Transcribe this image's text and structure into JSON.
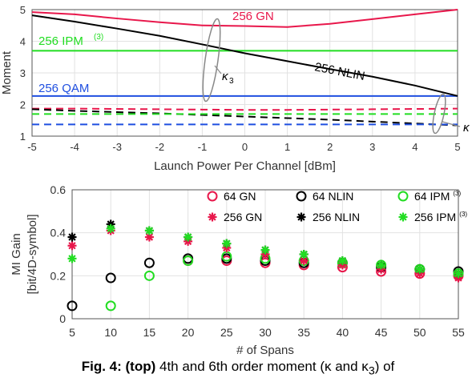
{
  "chart_data": [
    {
      "type": "line",
      "xlabel": "Launch Power Per Channel [dBm]",
      "ylabel": "Moment",
      "xlim": [
        -5,
        5
      ],
      "ylim": [
        1,
        5
      ],
      "xticks": [
        "-5",
        "-4",
        "-3",
        "-2",
        "-1",
        "0",
        "1",
        "2",
        "3",
        "4",
        "5"
      ],
      "yticks": [
        "1",
        "2",
        "3",
        "4",
        "5"
      ],
      "grid": true,
      "x": [
        -5,
        -4,
        -3,
        -2,
        -1,
        0,
        1,
        2,
        3,
        4,
        5
      ],
      "series": [
        {
          "name": "256 GN",
          "style": "solid",
          "color": "#e8174b",
          "values": [
            4.92,
            4.85,
            4.72,
            4.6,
            4.5,
            4.48,
            4.45,
            4.55,
            4.7,
            4.85,
            5.0
          ]
        },
        {
          "name": "256 IPM(3)",
          "style": "solid",
          "color": "#22dd22",
          "values": [
            3.7,
            3.7,
            3.7,
            3.7,
            3.7,
            3.7,
            3.7,
            3.7,
            3.7,
            3.7,
            3.7
          ]
        },
        {
          "name": "256 QAM",
          "style": "solid",
          "color": "#1f4fe0",
          "values": [
            2.27,
            2.27,
            2.27,
            2.27,
            2.27,
            2.27,
            2.27,
            2.27,
            2.27,
            2.27,
            2.27
          ]
        },
        {
          "name": "256 NLIN",
          "style": "solid",
          "color": "#000000",
          "values": [
            4.82,
            4.62,
            4.4,
            4.17,
            3.9,
            3.62,
            3.37,
            3.12,
            2.88,
            2.6,
            2.27
          ]
        },
        {
          "name": "GN (dashed)",
          "style": "dashed",
          "color": "#e8174b",
          "values": [
            1.87,
            1.87,
            1.86,
            1.85,
            1.84,
            1.83,
            1.83,
            1.84,
            1.85,
            1.86,
            1.87
          ]
        },
        {
          "name": "NLIN (dashed)",
          "style": "dashed",
          "color": "#000000",
          "values": [
            1.85,
            1.8,
            1.76,
            1.72,
            1.67,
            1.62,
            1.57,
            1.52,
            1.46,
            1.4,
            1.34
          ]
        },
        {
          "name": "IPM (dashed)",
          "style": "dashed",
          "color": "#22dd22",
          "values": [
            1.7,
            1.7,
            1.7,
            1.7,
            1.7,
            1.7,
            1.7,
            1.7,
            1.7,
            1.7,
            1.7
          ]
        },
        {
          "name": "QAM (dashed)",
          "style": "dashed",
          "color": "#1f4fe0",
          "values": [
            1.37,
            1.37,
            1.37,
            1.37,
            1.37,
            1.37,
            1.37,
            1.37,
            1.37,
            1.37,
            1.37
          ]
        }
      ],
      "labels": {
        "gn": "256 GN",
        "ipm": "256 IPM",
        "ipm_sup": "(3)",
        "qam": "256 QAM",
        "nlin": "256 NLIN",
        "kappa3": "κ",
        "kappa3_sub": "3",
        "kappa": "κ"
      }
    },
    {
      "type": "scatter",
      "xlabel": "# of Spans",
      "ylabel_line1": "MI Gain",
      "ylabel_line2": "[bit/4D-symbol]",
      "xlim": [
        5,
        55
      ],
      "ylim": [
        0,
        0.6
      ],
      "xticks": [
        "5",
        "10",
        "15",
        "20",
        "25",
        "30",
        "35",
        "40",
        "45",
        "50",
        "55"
      ],
      "yticks": [
        "0",
        "0.2",
        "0.4",
        "0.6"
      ],
      "grid": true,
      "legend_position": "top-right",
      "x": [
        5,
        10,
        15,
        20,
        25,
        30,
        35,
        40,
        45,
        50,
        55
      ],
      "series": [
        {
          "name": "64 GN",
          "marker": "circle",
          "color": "#e8174b",
          "values": [
            null,
            null,
            null,
            0.27,
            0.27,
            0.26,
            0.25,
            0.24,
            0.22,
            0.21,
            0.2
          ]
        },
        {
          "name": "64 NLIN",
          "marker": "circle",
          "color": "#000000",
          "values": [
            0.06,
            0.19,
            0.26,
            0.28,
            0.28,
            0.27,
            0.26,
            0.26,
            0.24,
            0.23,
            0.22
          ]
        },
        {
          "name": "64 IPM",
          "name_sup": "(3)",
          "marker": "circle",
          "color": "#22dd22",
          "values": [
            null,
            0.06,
            0.2,
            0.27,
            0.29,
            0.28,
            0.27,
            0.26,
            0.25,
            0.23,
            0.21
          ]
        },
        {
          "name": "256 GN",
          "marker": "star",
          "color": "#e8174b",
          "values": [
            0.34,
            0.41,
            0.38,
            0.36,
            0.33,
            0.3,
            0.27,
            0.25,
            0.23,
            0.21,
            0.19
          ]
        },
        {
          "name": "256 NLIN",
          "marker": "star",
          "color": "#000000",
          "values": [
            0.38,
            0.44,
            0.41,
            0.38,
            0.35,
            0.32,
            0.3,
            0.27,
            0.25,
            0.23,
            0.21
          ]
        },
        {
          "name": "256 IPM",
          "name_sup": "(3)",
          "marker": "star",
          "color": "#22dd22",
          "values": [
            0.28,
            0.42,
            0.41,
            0.38,
            0.35,
            0.32,
            0.3,
            0.27,
            0.25,
            0.23,
            0.21
          ]
        }
      ]
    }
  ],
  "caption": {
    "bold": "Fig. 4: (top)",
    "text": " 4th and 6th order moment (κ and κ",
    "sub": "3",
    "tail": ") of"
  }
}
